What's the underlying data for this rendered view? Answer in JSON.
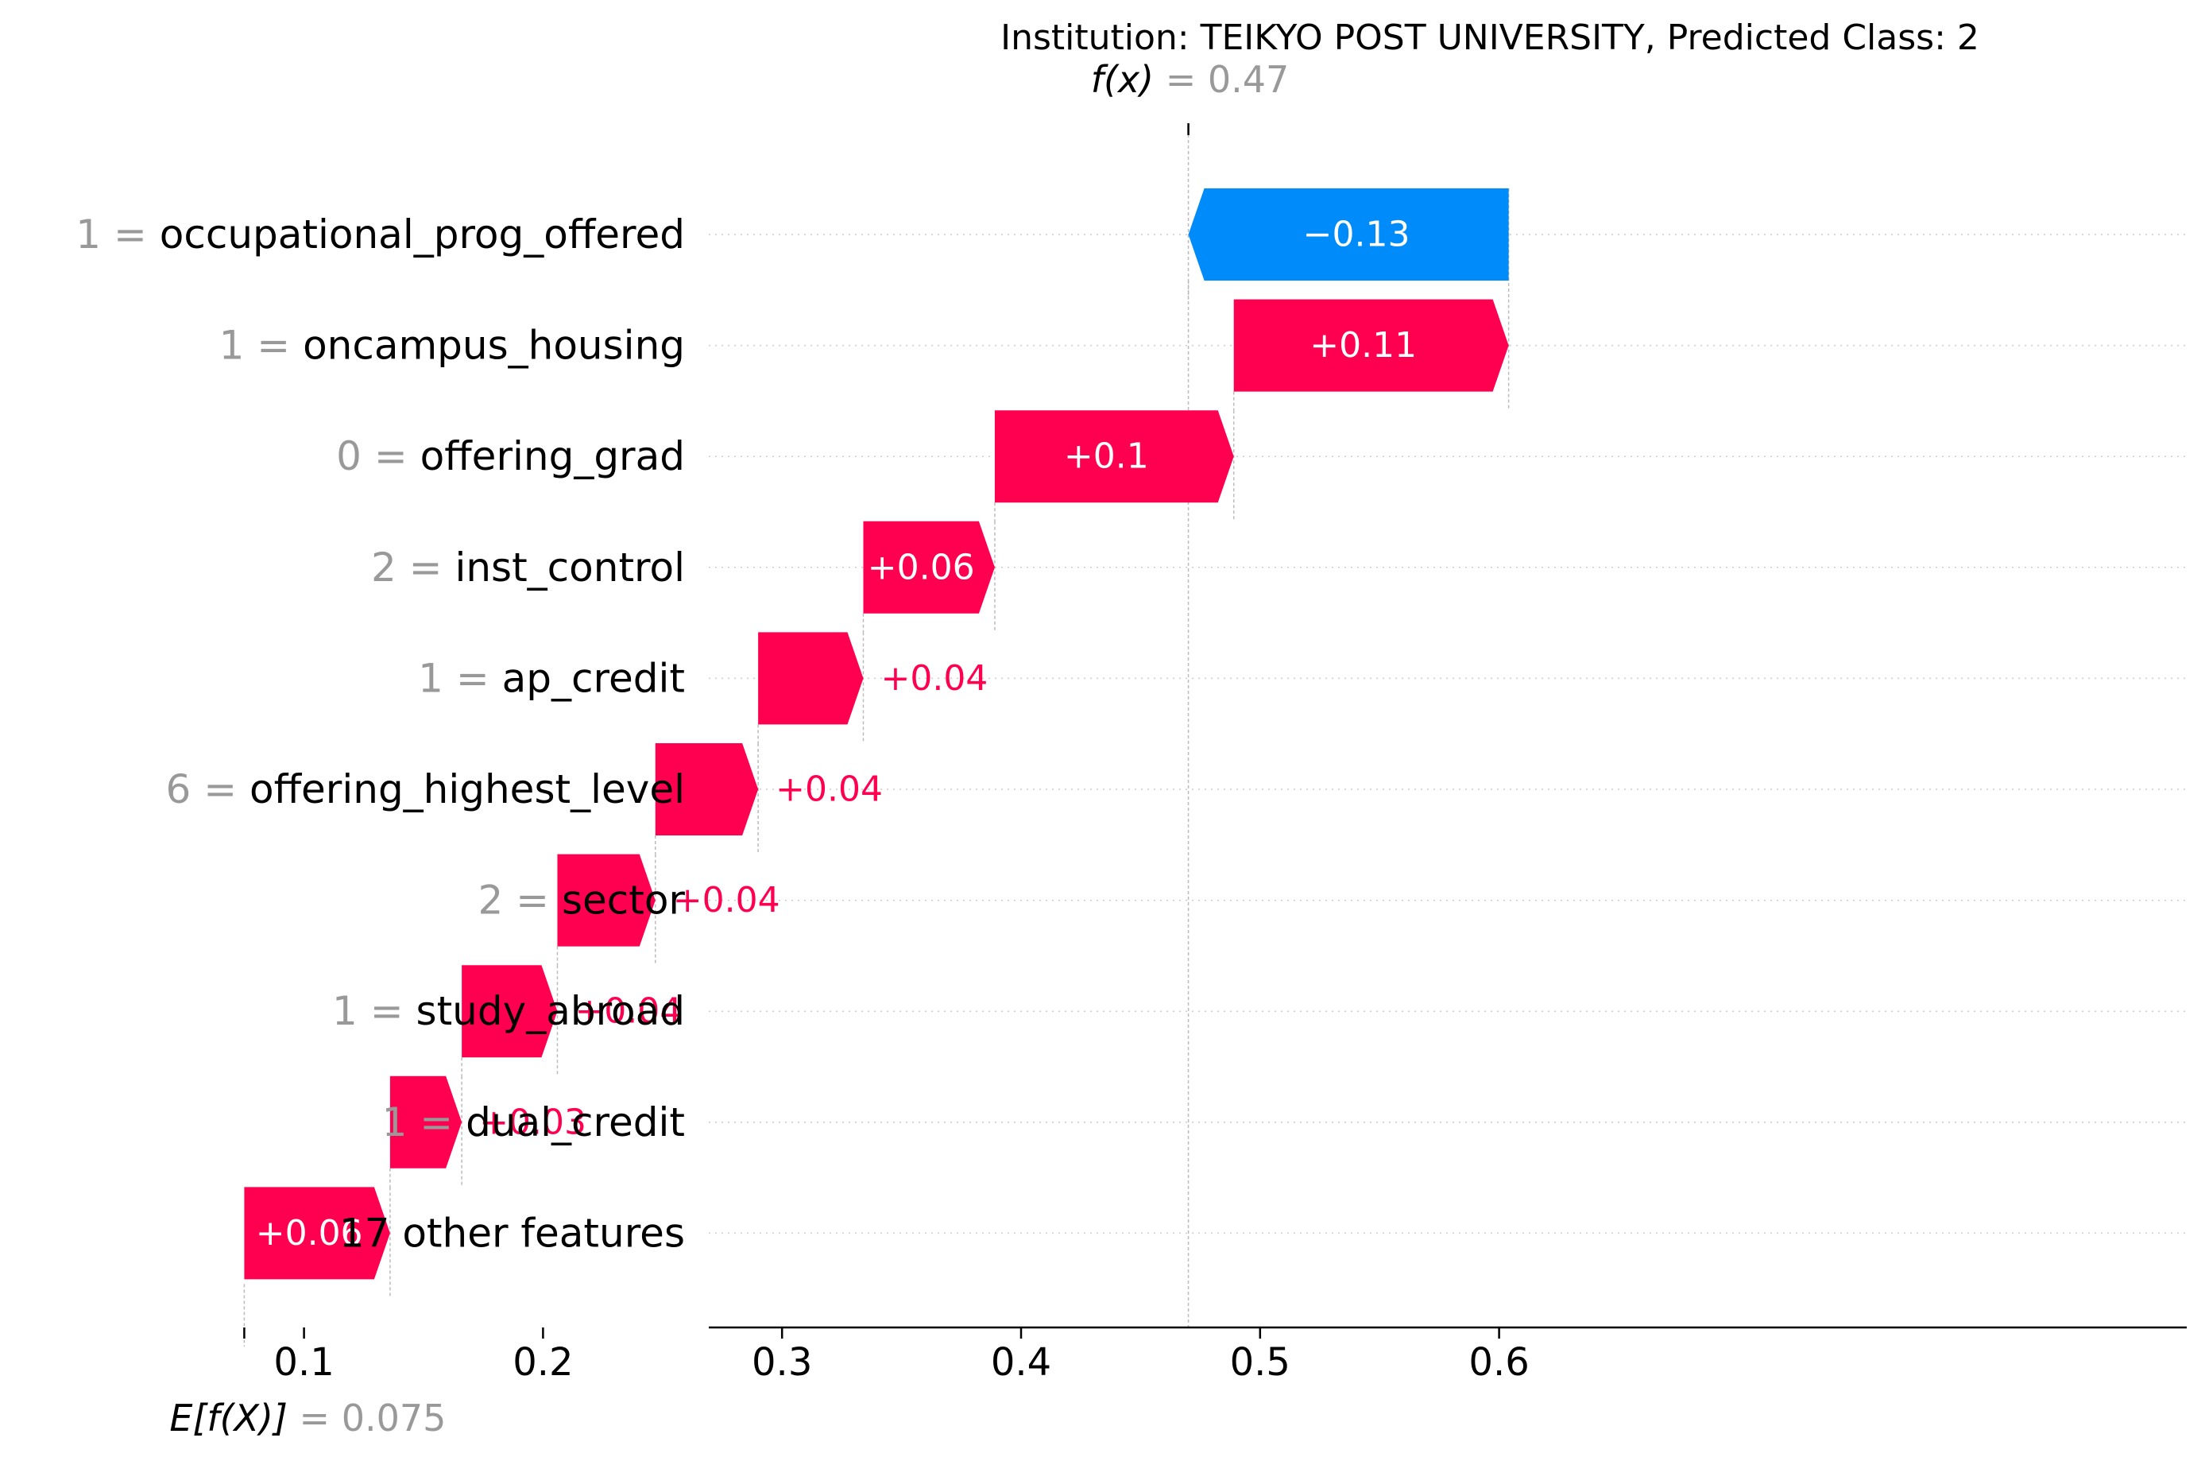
{
  "chart_data": {
    "type": "waterfall",
    "title": "Institution: TEIKYO POST UNIVERSITY, Predicted Class: 2",
    "base_value": 0.075,
    "base_value_text": "= 0.075",
    "base_label": "E[f(X)]",
    "final_value": 0.47,
    "final_value_text": "= 0.47",
    "final_label": "f(x)",
    "xlim": [
      0.071,
      0.69
    ],
    "xticks": [
      0.1,
      0.2,
      0.3,
      0.4,
      0.5,
      0.6
    ],
    "xtick_labels": [
      "0.1",
      "0.2",
      "0.3",
      "0.4",
      "0.5",
      "0.6"
    ],
    "colors": {
      "positive": "#ff0051",
      "negative": "#008bfb",
      "axis": "#000000",
      "muted": "#999999"
    },
    "features": [
      {
        "value": "1 =",
        "name": "occupational_prog_offered",
        "label": "−0.13",
        "start": 0.604,
        "end": 0.47
      },
      {
        "value": "1 =",
        "name": "oncampus_housing",
        "label": "+0.11",
        "start": 0.489,
        "end": 0.604
      },
      {
        "value": "0 =",
        "name": "offering_grad",
        "label": "+0.1",
        "start": 0.389,
        "end": 0.489
      },
      {
        "value": "2 =",
        "name": "inst_control",
        "label": "+0.06",
        "start": 0.334,
        "end": 0.389
      },
      {
        "value": "1 =",
        "name": "ap_credit",
        "label": "+0.04",
        "start": 0.29,
        "end": 0.334
      },
      {
        "value": "6 =",
        "name": "offering_highest_level",
        "label": "+0.04",
        "start": 0.247,
        "end": 0.29
      },
      {
        "value": "2 =",
        "name": "sector",
        "label": "+0.04",
        "start": 0.206,
        "end": 0.247
      },
      {
        "value": "1 =",
        "name": "study_abroad",
        "label": "+0.04",
        "start": 0.166,
        "end": 0.206
      },
      {
        "value": "1 =",
        "name": "dual_credit",
        "label": "+0.03",
        "start": 0.136,
        "end": 0.166
      },
      {
        "value": "",
        "name": "17 other features",
        "label": "+0.06",
        "start": 0.075,
        "end": 0.136
      }
    ]
  }
}
